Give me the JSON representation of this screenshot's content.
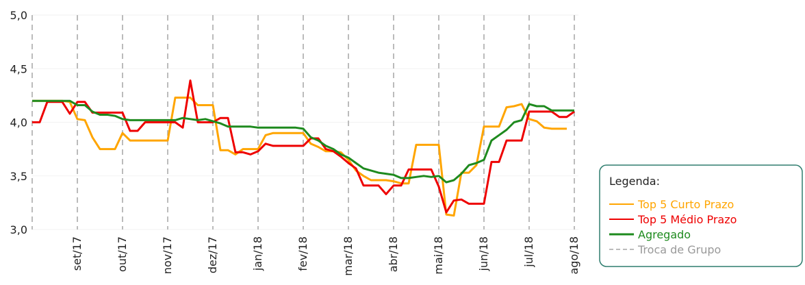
{
  "chart_data": {
    "type": "line",
    "categories": [
      null,
      null,
      null,
      null,
      null,
      null,
      "set/17",
      null,
      null,
      null,
      null,
      null,
      "out/17",
      null,
      null,
      null,
      null,
      null,
      "nov/17",
      null,
      null,
      null,
      null,
      null,
      "dez/17",
      null,
      null,
      null,
      null,
      null,
      "jan/18",
      null,
      null,
      null,
      null,
      null,
      "fev/18",
      null,
      null,
      null,
      null,
      null,
      "mar/18",
      null,
      null,
      null,
      null,
      null,
      "abr/18",
      null,
      null,
      null,
      null,
      null,
      "mai/18",
      null,
      null,
      null,
      null,
      null,
      "jun/18",
      null,
      null,
      null,
      null,
      null,
      "jul/18",
      null,
      null,
      null,
      null,
      null,
      "ago/18"
    ],
    "series": [
      {
        "name": "Top 5 Curto Prazo",
        "color": "#ffa500",
        "values": [
          4.2,
          4.2,
          4.2,
          4.2,
          4.2,
          4.19,
          4.03,
          4.02,
          3.86,
          3.75,
          3.75,
          3.75,
          3.9,
          3.83,
          3.83,
          3.83,
          3.83,
          3.83,
          3.83,
          4.23,
          4.23,
          4.23,
          4.16,
          4.16,
          4.16,
          3.74,
          3.74,
          3.7,
          3.75,
          3.75,
          3.75,
          3.88,
          3.9,
          3.9,
          3.9,
          3.9,
          3.9,
          3.8,
          3.77,
          3.73,
          3.73,
          3.72,
          3.65,
          3.55,
          3.5,
          3.46,
          3.46,
          3.46,
          3.45,
          3.43,
          3.43,
          3.79,
          3.79,
          3.79,
          3.79,
          3.14,
          3.13,
          3.53,
          3.53,
          3.6,
          3.96,
          3.96,
          3.96,
          4.14,
          4.15,
          4.17,
          4.03,
          4.01,
          3.95,
          3.94,
          3.94,
          3.94,
          null
        ]
      },
      {
        "name": "Top 5 Médio Prazo",
        "color": "#ee0000",
        "values": [
          4.0,
          4.0,
          4.19,
          4.19,
          4.19,
          4.08,
          4.19,
          4.19,
          4.09,
          4.09,
          4.09,
          4.09,
          4.09,
          3.92,
          3.92,
          4.0,
          4.0,
          4.0,
          4.0,
          4.0,
          3.95,
          4.39,
          4.0,
          4.0,
          4.0,
          4.04,
          4.04,
          3.72,
          3.72,
          3.7,
          3.73,
          3.8,
          3.78,
          3.78,
          3.78,
          3.78,
          3.78,
          3.85,
          3.85,
          3.75,
          3.73,
          3.68,
          3.62,
          3.57,
          3.41,
          3.41,
          3.41,
          3.33,
          3.41,
          3.41,
          3.56,
          3.56,
          3.56,
          3.56,
          3.4,
          3.16,
          3.27,
          3.28,
          3.24,
          3.24,
          3.24,
          3.63,
          3.63,
          3.83,
          3.83,
          3.83,
          4.1,
          4.1,
          4.1,
          4.1,
          4.05,
          4.05,
          4.1
        ]
      },
      {
        "name": "Agregado",
        "color": "#1e8a1e",
        "values": [
          4.2,
          4.2,
          4.2,
          4.2,
          4.2,
          4.2,
          4.16,
          4.16,
          4.1,
          4.07,
          4.07,
          4.06,
          4.03,
          4.02,
          4.02,
          4.02,
          4.02,
          4.02,
          4.02,
          4.02,
          4.04,
          4.03,
          4.02,
          4.03,
          4.01,
          3.99,
          3.96,
          3.96,
          3.96,
          3.96,
          3.95,
          3.95,
          3.95,
          3.95,
          3.95,
          3.95,
          3.94,
          3.86,
          3.83,
          3.78,
          3.75,
          3.7,
          3.67,
          3.62,
          3.57,
          3.55,
          3.53,
          3.52,
          3.51,
          3.48,
          3.48,
          3.49,
          3.5,
          3.49,
          3.5,
          3.44,
          3.46,
          3.52,
          3.6,
          3.62,
          3.65,
          3.83,
          3.88,
          3.93,
          4.0,
          4.02,
          4.17,
          4.15,
          4.15,
          4.11,
          4.11,
          4.11,
          4.11
        ]
      }
    ],
    "ylim": [
      3.0,
      5.0
    ],
    "yticks": [
      {
        "value": 3.0,
        "label": "3,0"
      },
      {
        "value": 3.5,
        "label": "3,5"
      },
      {
        "value": 4.0,
        "label": "4,0"
      },
      {
        "value": 4.5,
        "label": "4,5"
      },
      {
        "value": 5.0,
        "label": "5,0"
      }
    ],
    "grid": true,
    "legend_title": "Legenda:",
    "group_change_label": "Troca de Grupo",
    "group_change_color": "#bbbbbb",
    "legend_position": "right"
  }
}
